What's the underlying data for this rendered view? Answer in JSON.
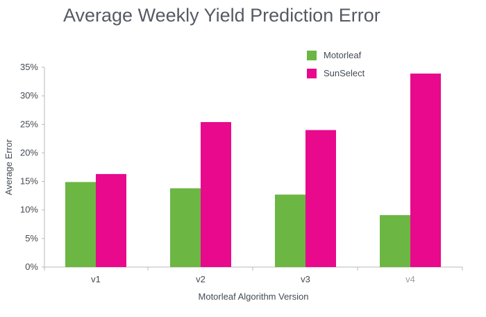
{
  "chart_data": {
    "type": "bar",
    "title": "Average Weekly Yield Prediction Error",
    "xlabel": "Motorleaf Algorithm Version",
    "ylabel": "Average Error",
    "categories": [
      "v1",
      "v2",
      "v3",
      "v4"
    ],
    "category_colors": [
      "#444a52",
      "#444a52",
      "#444a52",
      "#9a9ea4"
    ],
    "series": [
      {
        "name": "Motorleaf",
        "color": "#6cb644",
        "values": [
          14.9,
          13.8,
          12.7,
          9.1
        ]
      },
      {
        "name": "SunSelect",
        "color": "#e8098c",
        "values": [
          16.3,
          25.4,
          24.0,
          33.9
        ]
      }
    ],
    "ylim": [
      0,
      35
    ],
    "yticks": [
      0,
      5,
      10,
      15,
      20,
      25,
      30,
      35
    ],
    "ytick_labels": [
      "0%",
      "5%",
      "10%",
      "15%",
      "20%",
      "25%",
      "30%",
      "35%"
    ],
    "grid": false,
    "legend_position": "top-right"
  }
}
